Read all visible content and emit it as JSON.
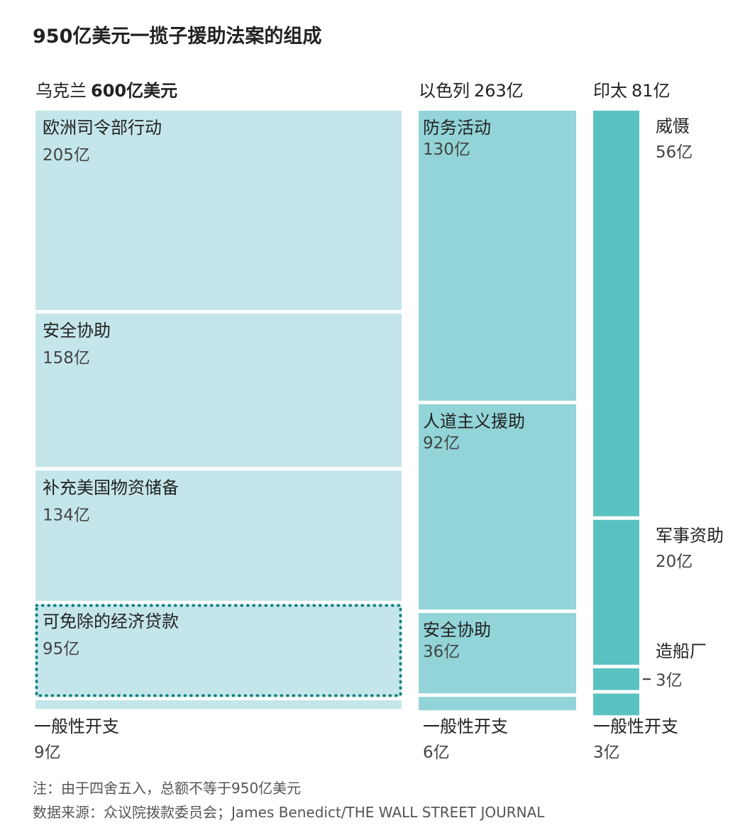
{
  "title": "950亿美元一揽子援助法案的组成",
  "colors": {
    "ukraine": "#c4e6ea",
    "israel": "#92d4d8",
    "indopacific": "#5bc2c2",
    "highlight_border": "#0f7e7e",
    "gap": "#ffffff"
  },
  "chart_data": {
    "type": "treemap",
    "unit": "亿",
    "columns": [
      {
        "key": "ukraine",
        "header_name": "乌克兰",
        "header_value": "600亿美元",
        "total": 600,
        "segments": [
          {
            "label": "欧洲司令部行动",
            "value": 205,
            "value_text": "205亿"
          },
          {
            "label": "安全协助",
            "value": 158,
            "value_text": "158亿"
          },
          {
            "label": "补充美国物资储备",
            "value": 134,
            "value_text": "134亿"
          },
          {
            "label": "可免除的经济贷款",
            "value": 95,
            "value_text": "95亿",
            "highlight": true
          },
          {
            "label": "一般性开支",
            "value": 9,
            "value_text": "9亿"
          }
        ]
      },
      {
        "key": "israel",
        "header_name": "以色列",
        "header_value": "263亿",
        "total": 263,
        "segments": [
          {
            "label": "防务活动",
            "value": 130,
            "value_text": "130亿"
          },
          {
            "label": "人道主义援助",
            "value": 92,
            "value_text": "92亿"
          },
          {
            "label": "安全协助",
            "value": 36,
            "value_text": "36亿"
          },
          {
            "label": "一般性开支",
            "value": 6,
            "value_text": "6亿"
          }
        ]
      },
      {
        "key": "indopacific",
        "header_name": "印太",
        "header_value": "81亿",
        "total": 81,
        "segments": [
          {
            "label": "威慑",
            "value": 56,
            "value_text": "56亿"
          },
          {
            "label": "军事资助",
            "value": 20,
            "value_text": "20亿"
          },
          {
            "label": "造船厂",
            "value": 3,
            "value_text": "3亿"
          },
          {
            "label": "一般性开支",
            "value": 3,
            "value_text": "3亿"
          }
        ]
      }
    ]
  },
  "footnote": "注：由于四舍五入，总额不等于950亿美元",
  "source": "数据来源：众议院拨款委员会；James Benedict/THE WALL STREET JOURNAL"
}
